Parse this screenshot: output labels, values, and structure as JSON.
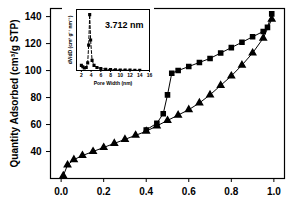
{
  "chart_data": [
    {
      "type": "line",
      "ylabel": "Quantity Adsorbed (cm³/g STP)",
      "xlim": [
        -0.05,
        1.05
      ],
      "xticks": [
        {
          "value": 0,
          "label": "0.0"
        },
        {
          "value": 0.2,
          "label": "0.2"
        },
        {
          "value": 0.4,
          "label": "0.4"
        },
        {
          "value": 0.6,
          "label": "0.6"
        },
        {
          "value": 0.8,
          "label": "0.8"
        },
        {
          "value": 1,
          "label": "1.0"
        }
      ],
      "ylim": [
        20,
        146
      ],
      "yticks": [
        40,
        60,
        80,
        100,
        120,
        140
      ],
      "series": [
        {
          "color": "#000000",
          "marker": "triangle",
          "line_style": "solid",
          "x": [
            0.01,
            0.03,
            0.06,
            0.1,
            0.15,
            0.2,
            0.25,
            0.3,
            0.35,
            0.4,
            0.45,
            0.5,
            0.55,
            0.6,
            0.65,
            0.7,
            0.75,
            0.8,
            0.85,
            0.9,
            0.95,
            0.99
          ],
          "values": [
            22,
            30,
            34,
            37,
            40,
            43,
            46,
            49,
            52,
            55,
            59,
            63,
            67,
            71,
            76,
            82,
            89,
            96,
            104,
            113,
            124,
            138
          ]
        },
        {
          "color": "#000000",
          "marker": "square",
          "line_style": "solid",
          "x": [
            0.99,
            0.97,
            0.95,
            0.9,
            0.85,
            0.8,
            0.75,
            0.7,
            0.65,
            0.6,
            0.55,
            0.52,
            0.5,
            0.48,
            0.45,
            0.4
          ],
          "values": [
            142,
            132,
            129,
            125,
            121,
            117,
            113,
            109,
            106,
            103,
            100,
            98,
            82,
            68,
            61,
            56
          ]
        }
      ]
    },
    {
      "type": "line",
      "xlabel": "Pore Width (nm)",
      "ylabel": "dV/dD (cm³ g⁻¹ nm⁻¹)",
      "annotation": "3.712 nm",
      "xlim": [
        1,
        16
      ],
      "xticks": [
        2,
        4,
        6,
        8,
        10,
        12,
        14,
        16
      ],
      "ylim": [
        0,
        0.24
      ],
      "tick_labels": "x",
      "series": [
        {
          "color": "#000000",
          "marker": "square",
          "line_style": "dashed",
          "x": [
            2.0,
            2.3,
            2.6,
            3.0,
            3.3,
            3.5,
            3.712,
            3.9,
            4.2,
            4.6,
            5.2,
            6,
            7,
            8,
            9,
            10,
            11,
            12,
            13,
            14
          ],
          "values": [
            0.02,
            0.015,
            0.01,
            0.012,
            0.03,
            0.1,
            0.22,
            0.12,
            0.04,
            0.02,
            0.012,
            0.008,
            0.005,
            0.004,
            0.003,
            0.002,
            0.002,
            0.0015,
            0.001,
            0.001
          ]
        }
      ]
    }
  ]
}
